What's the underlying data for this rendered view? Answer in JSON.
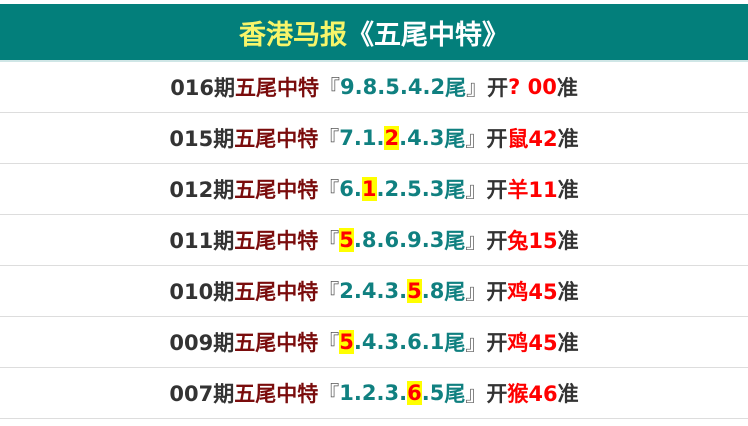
{
  "header": {
    "title_a": "香港马报",
    "title_b": "《五尾中特》"
  },
  "colors": {
    "header_bg": "#037f7b",
    "title_yellow": "#f7f56a",
    "digits": "#108080",
    "result": "#ff0000",
    "highlight": "#ffff00"
  },
  "labels": {
    "name": "五尾中特",
    "open_bracket": "『",
    "close_bracket": "』",
    "tail": "尾",
    "open": "开",
    "accurate": "准"
  },
  "rows": [
    {
      "period": "016期",
      "digits": [
        "9",
        "8",
        "5",
        "4",
        "2"
      ],
      "hit": -1,
      "result": "? 00"
    },
    {
      "period": "015期",
      "digits": [
        "7",
        "1",
        "2",
        "4",
        "3"
      ],
      "hit": 2,
      "result": "鼠42"
    },
    {
      "period": "012期",
      "digits": [
        "6",
        "1",
        "2",
        "5",
        "3"
      ],
      "hit": 1,
      "result": "羊11"
    },
    {
      "period": "011期",
      "digits": [
        "5",
        "8",
        "6",
        "9",
        "3"
      ],
      "hit": 0,
      "result": "兔15"
    },
    {
      "period": "010期",
      "digits": [
        "2",
        "4",
        "3",
        "5",
        "8"
      ],
      "hit": 3,
      "result": "鸡45"
    },
    {
      "period": "009期",
      "digits": [
        "5",
        "4",
        "3",
        "6",
        "1"
      ],
      "hit": 0,
      "result": "鸡45"
    },
    {
      "period": "007期",
      "digits": [
        "1",
        "2",
        "3",
        "6",
        "5"
      ],
      "hit": 3,
      "result": "猴46"
    }
  ]
}
